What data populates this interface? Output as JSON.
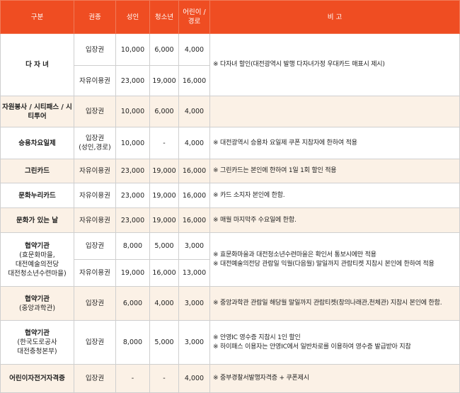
{
  "header": {
    "category": "구분",
    "ticket": "권종",
    "adult": "성인",
    "youth": "청소년",
    "child": "어린이 / 경로",
    "note": "비 고"
  },
  "rows": {
    "dajanyeo": {
      "title": "다 자 녀",
      "r1": {
        "ticket": "입장권",
        "adult": "10,000",
        "youth": "6,000",
        "child": "4,000"
      },
      "r2": {
        "ticket": "자유이용권",
        "adult": "23,000",
        "youth": "19,000",
        "child": "16,000"
      },
      "note": "※ 다자녀 할인(대전광역시 발행 다자녀가정 우대카드 매표시 제시)"
    },
    "volunteer": {
      "title": "자원봉사 / 시티패스 / 시티투어",
      "ticket": "입장권",
      "adult": "10,000",
      "youth": "6,000",
      "child": "4,000",
      "note": ""
    },
    "carpool": {
      "title": "승용차요일제",
      "ticket_l1": "입장권",
      "ticket_l2": "(성인,경로)",
      "adult": "10,000",
      "youth": "-",
      "child": "4,000",
      "note": "※ 대전광역시 승용차 요일제 쿠폰 지참자에 한하여 적용"
    },
    "green": {
      "title": "그린카드",
      "ticket": "자유이용권",
      "adult": "23,000",
      "youth": "19,000",
      "child": "16,000",
      "note": "※ 그린카드는 본인에 한하여 1일 1회 할인 적용"
    },
    "nuri": {
      "title": "문화누리카드",
      "ticket": "자유이용권",
      "adult": "23,000",
      "youth": "19,000",
      "child": "16,000",
      "note": "※ 카드 소지자 본인에 한함."
    },
    "cultureday": {
      "title": "문화가 있는 날",
      "ticket": "자유이용권",
      "adult": "23,000",
      "youth": "19,000",
      "child": "16,000",
      "note": "※ 매월 마지막주 수요일에 한함."
    },
    "partner1": {
      "title": "협약기관",
      "sub1": "(효문화마을,",
      "sub2": "대전예술의전당",
      "sub3": "대전청소년수련마을)",
      "r1": {
        "ticket": "입장권",
        "adult": "8,000",
        "youth": "5,000",
        "child": "3,000"
      },
      "r2": {
        "ticket": "자유이용권",
        "adult": "19,000",
        "youth": "16,000",
        "child": "13,000"
      },
      "note1": "※ 효문화마을과 대전청소년수련마을은 확인서 통보시에만 적용",
      "note2": "※ 대전예술의전당 관람일 익월(다음월) 말일까지 관람티켓 지참시 본인에 한하여 적용"
    },
    "partner2": {
      "title": "협약기관",
      "sub1": "(중앙과학관)",
      "ticket": "입장권",
      "adult": "6,000",
      "youth": "4,000",
      "child": "3,000",
      "note": "※ 중앙과학관 관람일 해당월 말일까지 관람티켓(창의나래관,천체관) 지참시 본인에 한함."
    },
    "partner3": {
      "title": "협약기관",
      "sub1": "(한국도로공사",
      "sub2": "대전충청본부)",
      "ticket": "입장권",
      "adult": "8,000",
      "youth": "5,000",
      "child": "3,000",
      "note1": "※ 안영IC 영수증 지참시 1인 할인",
      "note2": "※ 하이패스 이용자는 안영IC에서 일반차로를 이용하여 영수증 발급받아 지참"
    },
    "childcert": {
      "title": "어린이자전거자격증",
      "ticket": "입장권",
      "adult": "-",
      "youth": "-",
      "child": "4,000",
      "note": "※ 중부경찰서발행자격증 + 쿠폰제시"
    }
  }
}
